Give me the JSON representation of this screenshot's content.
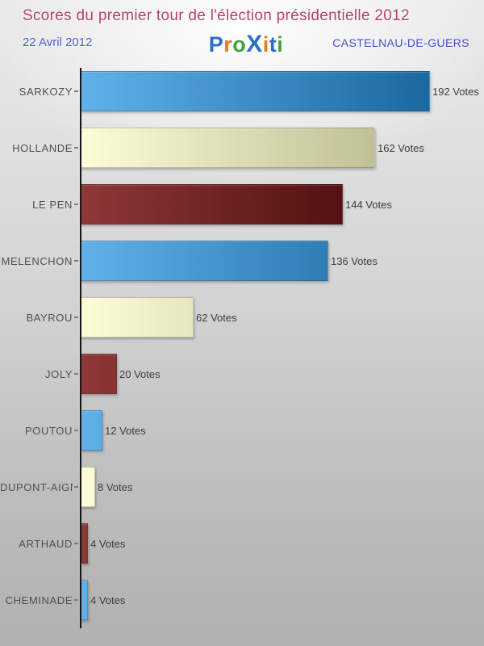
{
  "header": {
    "title": "Scores du premier tour de l'élection présidentielle 2012",
    "date": "22 Avril 2012",
    "city": "CASTELNAU-DE-GUERS",
    "logo_letters": [
      {
        "ch": "P",
        "color": "#2a6fc3"
      },
      {
        "ch": "r",
        "color": "#e7791d"
      },
      {
        "ch": "o",
        "color": "#44a13b"
      },
      {
        "ch": "X",
        "color": "#2a6fc3"
      },
      {
        "ch": "i",
        "color": "#e7791d"
      },
      {
        "ch": "t",
        "color": "#2a6fc3"
      },
      {
        "ch": "i",
        "color": "#44a13b"
      }
    ]
  },
  "chart_data": {
    "type": "bar",
    "orientation": "horizontal",
    "title": "Scores du premier tour de l'élection présidentielle 2012",
    "subtitle": "22 Avril 2012",
    "location": "CASTELNAU-DE-GUERS",
    "categories": [
      "SARKOZY",
      "HOLLANDE",
      "LE PEN",
      "MELENCHON",
      "BAYROU",
      "JOLY",
      "POUTOU",
      "DUPONT-AIGNAN",
      "ARTHAUD",
      "CHEMINADE"
    ],
    "values": [
      192,
      162,
      144,
      136,
      62,
      20,
      12,
      8,
      4,
      4
    ],
    "value_suffix": " Votes",
    "xlim": [
      0,
      192
    ],
    "grid": false,
    "legend": "none",
    "palette": [
      {
        "name": "blue",
        "light": "#60b0ea",
        "dark": "#1a689f"
      },
      {
        "name": "cream",
        "light": "#fdfdd8",
        "dark": "#b5b489"
      },
      {
        "name": "red",
        "light": "#8f3838",
        "dark": "#3f0505"
      }
    ]
  },
  "colors": {
    "title": "#b8406e",
    "subtitle": "#4a5ed0",
    "axis": "#171717",
    "label": "#4f4f4f"
  }
}
